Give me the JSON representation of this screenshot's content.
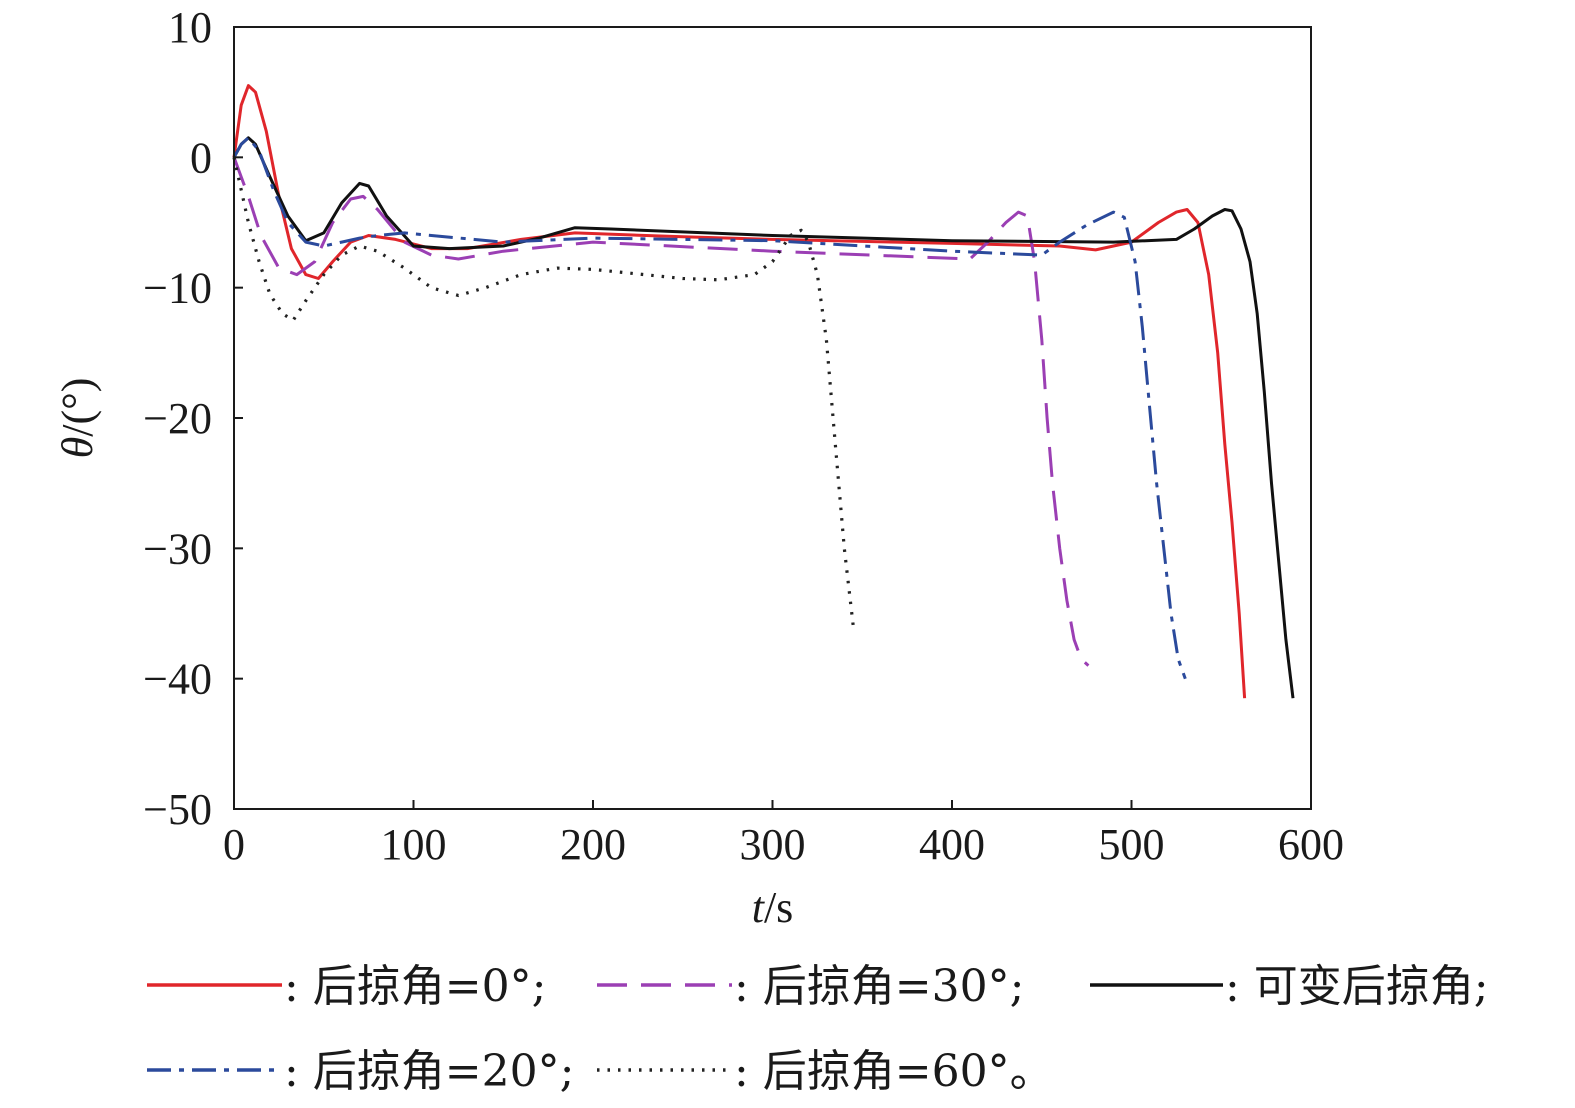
{
  "chart_data": {
    "type": "line",
    "title": "",
    "xlabel_var": "t",
    "xlabel_unit": "/s",
    "ylabel_var": "θ",
    "ylabel_unit": "/(°)",
    "xlim": [
      0,
      600
    ],
    "ylim": [
      -50,
      10
    ],
    "xticks": [
      0,
      100,
      200,
      300,
      400,
      500,
      600
    ],
    "yticks": [
      10,
      0,
      -10,
      -20,
      -30,
      -40,
      -50
    ],
    "ytick_labels": [
      "10",
      "0",
      "−10",
      "−20",
      "−30",
      "−40",
      "−50"
    ],
    "grid": false,
    "legend_position": "bottom",
    "series": [
      {
        "name": "后掠角=0°",
        "legend_label": ": 后掠角=0°;",
        "color": "#e0262b",
        "style": "solid",
        "x": [
          0,
          4,
          8,
          12,
          18,
          25,
          32,
          40,
          47,
          55,
          65,
          75,
          90,
          110,
          130,
          160,
          190,
          250,
          300,
          400,
          460,
          480,
          500,
          515,
          525,
          531,
          537,
          543,
          548,
          552,
          556,
          560,
          563
        ],
        "y": [
          0,
          4,
          5.5,
          5,
          2,
          -3,
          -7,
          -9,
          -9.3,
          -8,
          -6.5,
          -6,
          -6.3,
          -7,
          -7,
          -6.3,
          -5.8,
          -6.1,
          -6.3,
          -6.6,
          -6.8,
          -7.1,
          -6.5,
          -5,
          -4.2,
          -4,
          -5,
          -9,
          -15,
          -22,
          -28,
          -35,
          -41.5
        ]
      },
      {
        "name": "后掠角=30°",
        "legend_label": ": 后掠角=30°;",
        "color": "#9b3fb4",
        "style": "dashed",
        "x": [
          0,
          4,
          8,
          15,
          25,
          35,
          45,
          55,
          65,
          72,
          80,
          95,
          110,
          125,
          150,
          200,
          300,
          410,
          420,
          430,
          437,
          442,
          446,
          450,
          453,
          456,
          460,
          464,
          468,
          472,
          476
        ],
        "y": [
          0,
          -1.5,
          -3,
          -6,
          -8.5,
          -9,
          -8,
          -5,
          -3.2,
          -3,
          -4,
          -6.5,
          -7.5,
          -7.8,
          -7.2,
          -6.5,
          -7.2,
          -7.8,
          -6.5,
          -5,
          -4.2,
          -4.5,
          -8,
          -14,
          -20,
          -25,
          -30,
          -34,
          -37,
          -38.5,
          -39
        ]
      },
      {
        "name": "可变后掠角",
        "legend_label": ": 可变后掠角;",
        "color": "#111111",
        "style": "solid",
        "x": [
          0,
          4,
          8,
          12,
          20,
          30,
          40,
          50,
          60,
          70,
          75,
          85,
          100,
          120,
          150,
          170,
          190,
          210,
          300,
          400,
          490,
          525,
          535,
          545,
          552,
          556,
          561,
          566,
          570,
          574,
          578,
          582,
          586,
          590
        ],
        "y": [
          0,
          1,
          1.5,
          1,
          -1.5,
          -4.5,
          -6.4,
          -5.8,
          -3.5,
          -2,
          -2.2,
          -4.5,
          -6.8,
          -7,
          -6.8,
          -6.2,
          -5.4,
          -5.5,
          -6,
          -6.4,
          -6.5,
          -6.3,
          -5.5,
          -4.5,
          -4,
          -4.1,
          -5.5,
          -8,
          -12,
          -18,
          -25,
          -31,
          -37,
          -41.5
        ]
      },
      {
        "name": "后掠角=20°",
        "legend_label": ": 后掠角=20°;",
        "color": "#2b4a9c",
        "style": "dashdot",
        "x": [
          0,
          4,
          8,
          14,
          22,
          30,
          40,
          50,
          60,
          70,
          80,
          95,
          110,
          150,
          200,
          300,
          400,
          450,
          460,
          475,
          490,
          496,
          502,
          506,
          510,
          514,
          518,
          522,
          526,
          530
        ],
        "y": [
          0,
          1,
          1.5,
          0.5,
          -2.5,
          -5,
          -6.5,
          -6.8,
          -6.5,
          -6.2,
          -6,
          -5.8,
          -6,
          -6.5,
          -6.2,
          -6.4,
          -7.2,
          -7.5,
          -6.5,
          -5.2,
          -4.2,
          -4.6,
          -8,
          -13,
          -19,
          -25,
          -30,
          -35,
          -38.5,
          -40
        ]
      },
      {
        "name": "后掠角=60°",
        "legend_label": ": 后掠角=60°。",
        "color": "#222222",
        "style": "dotted",
        "x": [
          0,
          4,
          8,
          14,
          20,
          27,
          33,
          40,
          50,
          60,
          70,
          80,
          95,
          110,
          125,
          140,
          160,
          180,
          200,
          250,
          270,
          290,
          300,
          310,
          316,
          320,
          325,
          330,
          335,
          340,
          345
        ],
        "y": [
          0,
          -2.5,
          -5,
          -8,
          -10.5,
          -12,
          -12.5,
          -11,
          -9,
          -7.5,
          -6.8,
          -7.2,
          -8.5,
          -10,
          -10.6,
          -10,
          -9,
          -8.5,
          -8.6,
          -9.3,
          -9.4,
          -9,
          -8,
          -6,
          -5.6,
          -6.5,
          -9,
          -14,
          -22,
          -30,
          -36
        ]
      }
    ]
  }
}
